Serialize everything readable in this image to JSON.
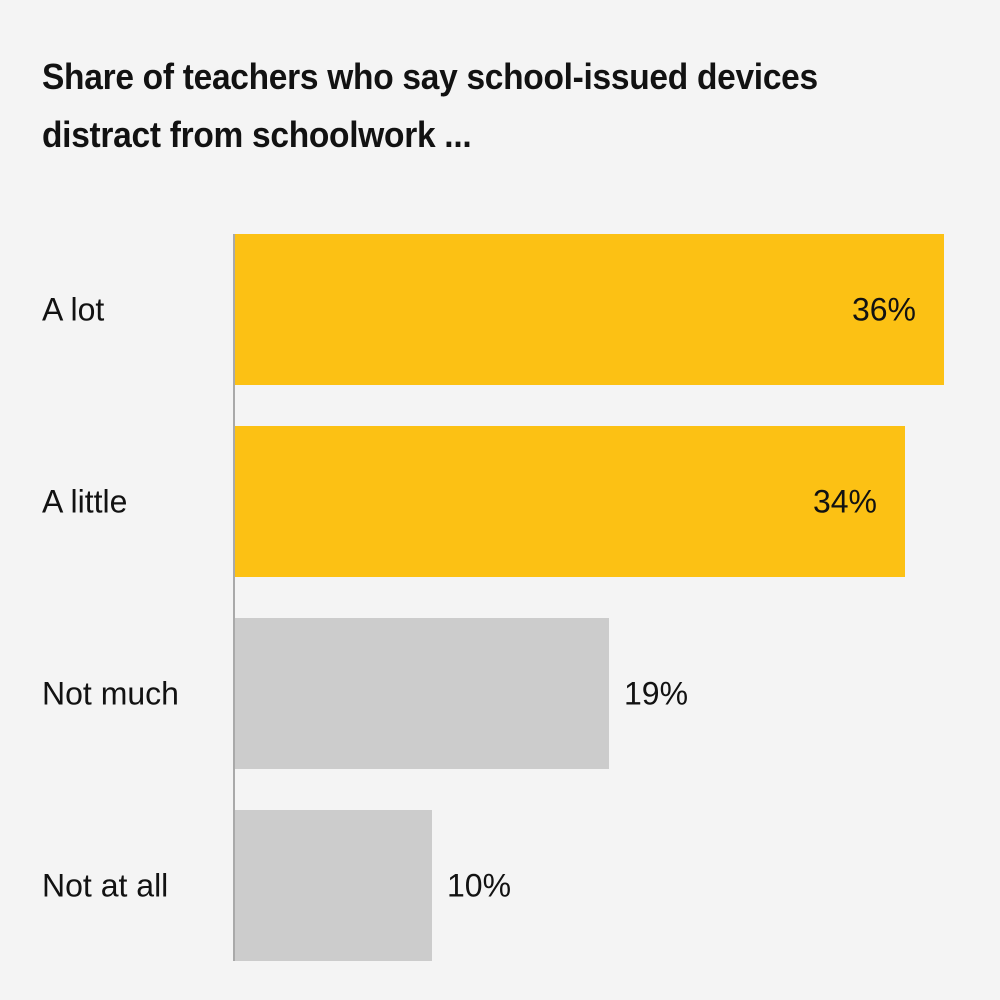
{
  "title": {
    "full": "Share of teachers who say school-issued devices distract from schoolwork ...",
    "line1": "Share of teachers who say school-issued devices",
    "line2": "distract from schoolwork ..."
  },
  "chart_data": {
    "type": "bar",
    "orientation": "horizontal",
    "title": "Share of teachers who say school-issued devices distract from schoolwork ...",
    "categories": [
      "A lot",
      "A little",
      "Not much",
      "Not at all"
    ],
    "values": [
      36,
      34,
      19,
      10
    ],
    "value_labels": [
      "36%",
      "34%",
      "19%",
      "10%"
    ],
    "xlim": [
      0,
      36
    ],
    "grid": false,
    "legend": null,
    "bars": [
      {
        "category": "A lot",
        "value": 36,
        "label": "36%",
        "color": "#fcc114",
        "label_position": "inside"
      },
      {
        "category": "A little",
        "value": 34,
        "label": "34%",
        "color": "#fcc114",
        "label_position": "inside"
      },
      {
        "category": "Not much",
        "value": 19,
        "label": "19%",
        "color": "#cccccc",
        "label_position": "outside"
      },
      {
        "category": "Not at all",
        "value": 10,
        "label": "10%",
        "color": "#cccccc",
        "label_position": "outside"
      }
    ],
    "colors": {
      "highlight": "#fcc114",
      "muted": "#cccccc",
      "axis_line": "#a9a9a9",
      "text": "#121212",
      "background": "#f4f4f4"
    }
  }
}
